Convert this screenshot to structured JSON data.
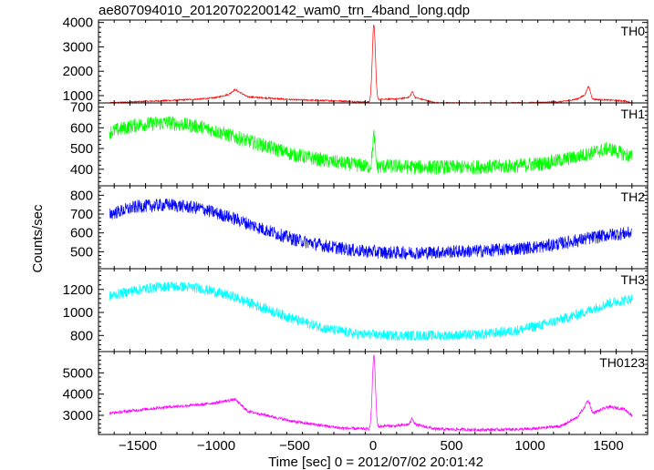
{
  "title": "ae807094010_20120702200142_wam0_trn_4band_long.qdp",
  "colors": {
    "TH0": "#ff0000",
    "TH1": "#00ff00",
    "TH2": "#0000ff",
    "TH3": "#00ffff",
    "TH0123": "#ff00ff",
    "axes": "#000000",
    "background": "#ffffff"
  },
  "chart_data": {
    "type": "line",
    "title": "ae807094010_20120702200142_wam0_trn_4band_long.qdp",
    "xlabel": "Time [sec] 0 = 2012/07/02 20:01:42",
    "ylabel": "Counts/sec",
    "xlim": [
      -1750,
      1750
    ],
    "x_ticks": [
      -1500,
      -1000,
      -500,
      0,
      500,
      1000,
      1500
    ],
    "x_tick_labels": [
      "−1500",
      "−1000",
      "−500",
      "0",
      "500",
      "1000",
      "1500"
    ],
    "x_range": [
      -1680,
      1650
    ],
    "grid": false,
    "legend": "none",
    "panels": [
      {
        "name": "TH0",
        "ylim": [
          700,
          4100
        ],
        "y_ticks": [
          1000,
          2000,
          3000,
          4000
        ],
        "y_tick_labels": [
          "1000",
          "2000",
          "3000",
          "4000"
        ],
        "baseline": {
          "x": [
            -1680,
            -1500,
            -1300,
            -1100,
            -1000,
            -920,
            -880,
            -800,
            -500,
            -200,
            -10,
            60,
            150,
            250,
            400,
            700,
            1000,
            1200,
            1300,
            1360,
            1400,
            1500,
            1600,
            1650
          ],
          "y": [
            700,
            750,
            800,
            860,
            920,
            1050,
            1250,
            950,
            830,
            780,
            720,
            860,
            860,
            950,
            700,
            690,
            700,
            750,
            860,
            1050,
            850,
            820,
            780,
            700
          ]
        },
        "noise": 30,
        "peaks": [
          {
            "x": 5,
            "y": 3900,
            "width": 14
          },
          {
            "x": 250,
            "y": 1150,
            "width": 12
          },
          {
            "x": 1375,
            "y": 1350,
            "width": 15
          }
        ]
      },
      {
        "name": "TH1",
        "ylim": [
          320,
          720
        ],
        "y_ticks": [
          400,
          500,
          600,
          700
        ],
        "y_tick_labels": [
          "400",
          "500",
          "600",
          "700"
        ],
        "baseline": {
          "x": [
            -1680,
            -1500,
            -1300,
            -1100,
            -900,
            -700,
            -500,
            -300,
            -100,
            0,
            100,
            300,
            600,
            900,
            1100,
            1300,
            1500,
            1650
          ],
          "y": [
            580,
            615,
            625,
            605,
            560,
            515,
            470,
            440,
            420,
            410,
            415,
            410,
            410,
            415,
            430,
            460,
            500,
            460
          ]
        },
        "noise": 35,
        "peaks": [
          {
            "x": 5,
            "y": 560,
            "width": 12
          }
        ]
      },
      {
        "name": "TH2",
        "ylim": [
          410,
          850
        ],
        "y_ticks": [
          500,
          600,
          700,
          800
        ],
        "y_tick_labels": [
          "500",
          "600",
          "700",
          "800"
        ],
        "baseline": {
          "x": [
            -1680,
            -1500,
            -1300,
            -1100,
            -900,
            -700,
            -500,
            -300,
            -100,
            100,
            300,
            500,
            700,
            900,
            1100,
            1300,
            1500,
            1650
          ],
          "y": [
            700,
            740,
            750,
            730,
            680,
            620,
            565,
            530,
            505,
            495,
            495,
            500,
            505,
            515,
            530,
            560,
            590,
            600
          ]
        },
        "noise": 35,
        "peaks": []
      },
      {
        "name": "TH3",
        "ylim": [
          660,
          1380
        ],
        "y_ticks": [
          800,
          1000,
          1200
        ],
        "y_tick_labels": [
          "800",
          "1000",
          "1200"
        ],
        "baseline": {
          "x": [
            -1680,
            -1500,
            -1300,
            -1100,
            -900,
            -700,
            -500,
            -300,
            -100,
            100,
            300,
            500,
            700,
            900,
            1100,
            1300,
            1500,
            1650
          ],
          "y": [
            1140,
            1200,
            1230,
            1210,
            1140,
            1040,
            940,
            860,
            810,
            800,
            800,
            800,
            810,
            840,
            900,
            980,
            1080,
            1120
          ]
        },
        "noise": 45,
        "peaks": []
      },
      {
        "name": "TH0123",
        "ylim": [
          2100,
          6000
        ],
        "y_ticks": [
          3000,
          4000,
          5000
        ],
        "y_tick_labels": [
          "3000",
          "4000",
          "5000"
        ],
        "baseline": {
          "x": [
            -1680,
            -1500,
            -1300,
            -1100,
            -1000,
            -920,
            -880,
            -800,
            -500,
            -200,
            -10,
            60,
            150,
            250,
            400,
            700,
            1000,
            1200,
            1300,
            1360,
            1400,
            1500,
            1600,
            1650
          ],
          "y": [
            3100,
            3250,
            3400,
            3500,
            3600,
            3700,
            3750,
            3200,
            2700,
            2400,
            2350,
            2500,
            2500,
            2600,
            2350,
            2320,
            2350,
            2500,
            2900,
            3500,
            3100,
            3400,
            3300,
            3000
          ]
        },
        "noise": 70,
        "peaks": [
          {
            "x": 5,
            "y": 5800,
            "width": 14
          },
          {
            "x": 250,
            "y": 2850,
            "width": 12
          },
          {
            "x": 1375,
            "y": 3650,
            "width": 15
          }
        ]
      }
    ]
  }
}
